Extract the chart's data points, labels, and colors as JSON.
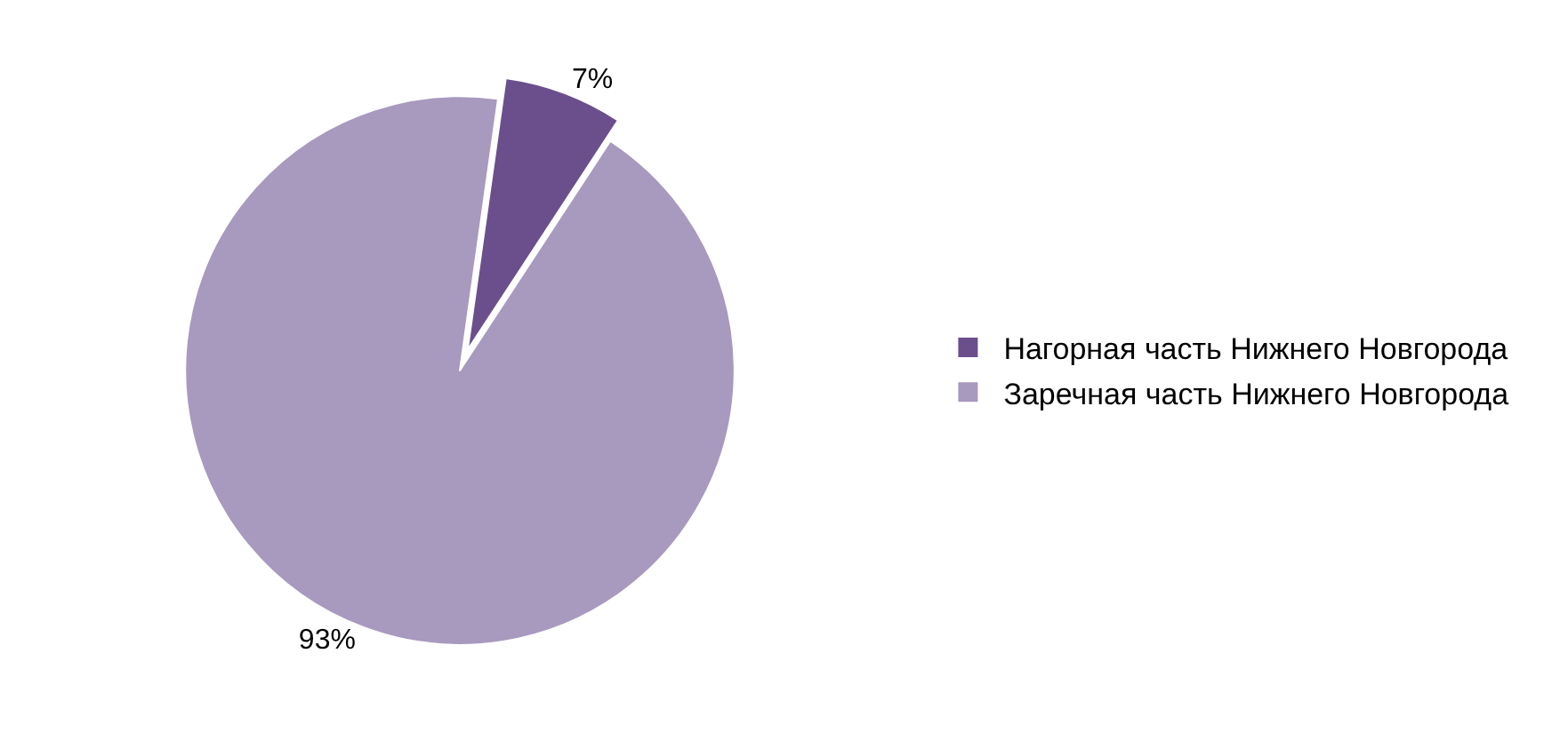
{
  "chart_data": {
    "type": "pie",
    "categories": [
      "Нагорная часть Нижнего Новгорода",
      "Заречная часть Нижнего Новгорода"
    ],
    "values": [
      7,
      93
    ],
    "colors": [
      "#6b4f8d",
      "#a899be"
    ],
    "value_labels": [
      "7%",
      "93%"
    ],
    "legend": "right"
  }
}
